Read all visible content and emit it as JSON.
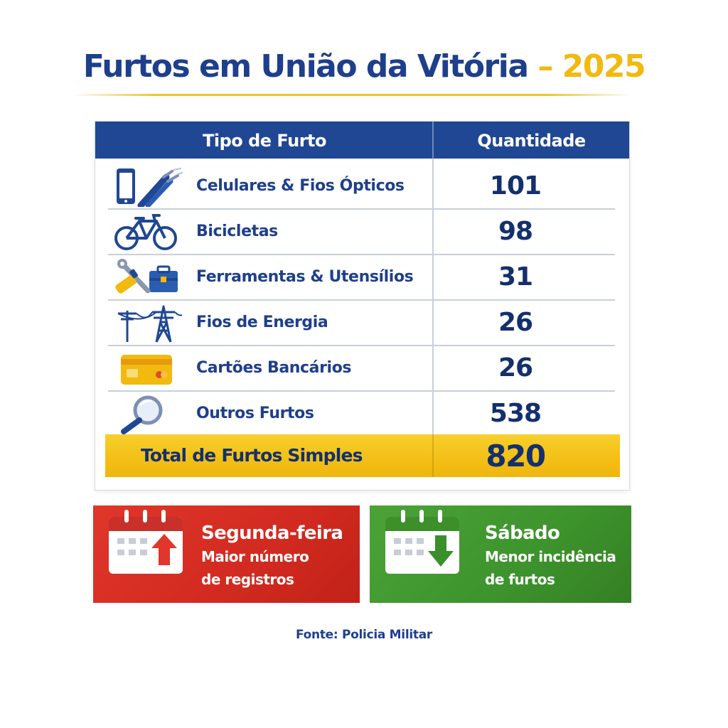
{
  "header": {
    "title": "Furtos em União da Vitória",
    "dash": " – ",
    "year": "2025"
  },
  "table": {
    "col_type": "Tipo de Furto",
    "col_qty": "Quantidade",
    "rows": [
      {
        "label": "Celulares & Fios Ópticos",
        "value": "101",
        "icon": "phone-and-cable-icon"
      },
      {
        "label": "Bicicletas",
        "value": "98",
        "icon": "bicycle-icon"
      },
      {
        "label": "Ferramentas & Utensílios",
        "value": "31",
        "icon": "tools-icon"
      },
      {
        "label": "Fios de Energia",
        "value": "26",
        "icon": "power-tower-icon"
      },
      {
        "label": "Cartões Bancários",
        "value": "26",
        "icon": "credit-card-icon"
      },
      {
        "label": "Outros Furtos",
        "value": "538",
        "icon": "magnifier-icon"
      }
    ],
    "total": {
      "label": "Total de Furtos Simples",
      "value": "820"
    }
  },
  "cards": {
    "highest": {
      "title": "Segunda-feira",
      "line1": "Maior número",
      "line2": "de registros",
      "color": "#d22a20",
      "icon": "calendar-arrow-up-icon"
    },
    "lowest": {
      "title": "Sábado",
      "line1": "Menor incidência",
      "line2": "de furtos",
      "color": "#3d932c",
      "icon": "calendar-arrow-down-icon"
    }
  },
  "footer": {
    "source": "Fonte: Policia Militar"
  },
  "colors": {
    "primary": "#1f4794",
    "accent": "#f2b90f",
    "red": "#d22a20",
    "green": "#3d932c"
  }
}
